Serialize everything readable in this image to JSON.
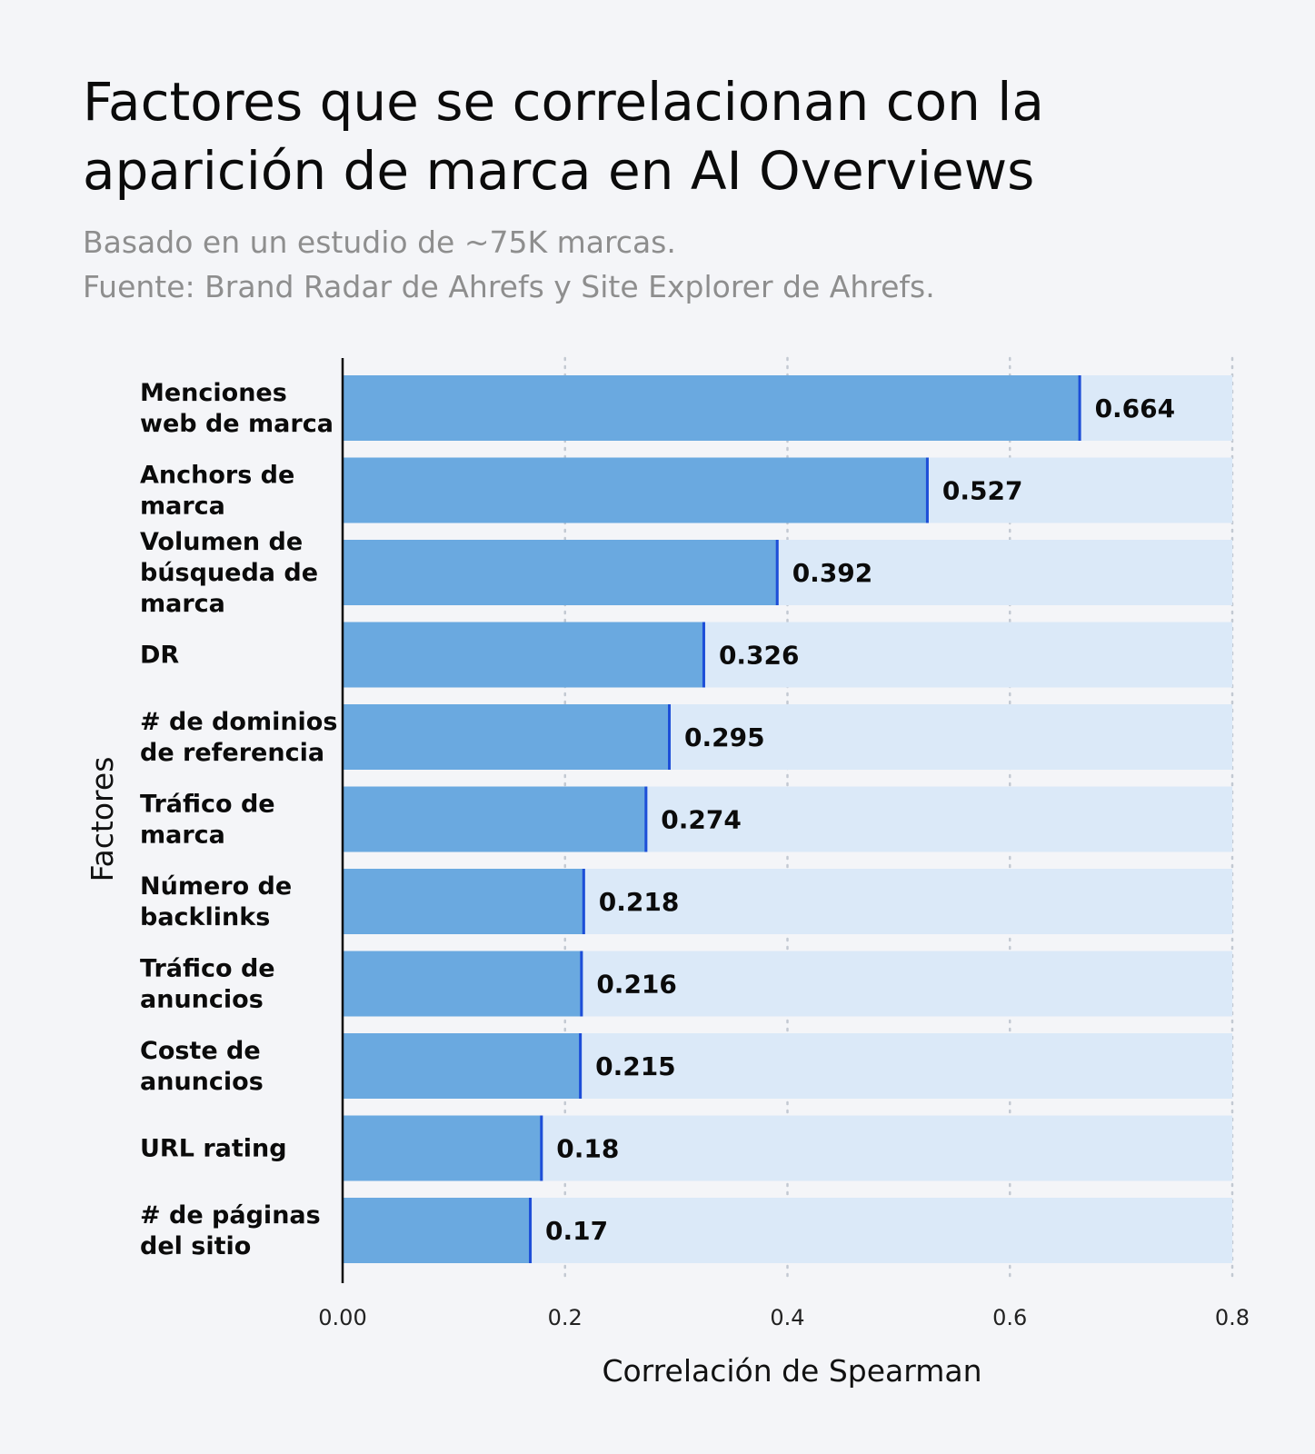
{
  "header": {
    "title_lines": [
      "Factores que se correlacionan con la",
      "aparición de marca en AI Overviews"
    ],
    "subtitle_lines": [
      "Basado en un estudio de ~75K marcas.",
      "Fuente: Brand Radar de Ahrefs y Site Explorer de Ahrefs."
    ]
  },
  "chart_data": {
    "type": "bar",
    "orientation": "horizontal",
    "xlabel": "Correlación de Spearman",
    "ylabel": "Factores",
    "xlim": [
      0,
      0.8
    ],
    "xticks": [
      0,
      0.2,
      0.4,
      0.6,
      0.8
    ],
    "xtick_labels": [
      "0.00",
      "0.2",
      "0.4",
      "0.6",
      "0.8"
    ],
    "grid": "vertical-dotted",
    "colors": {
      "bar": "#6aa9e0",
      "track": "#dbe9f8",
      "bar_end": "#1d4ed8",
      "grid": "#c3c9d2"
    },
    "categories": [
      [
        "Menciones",
        "web de marca"
      ],
      [
        "Anchors de",
        "marca"
      ],
      [
        "Volumen de",
        "búsqueda de",
        "marca"
      ],
      [
        "DR"
      ],
      [
        "# de dominios",
        "de referencia"
      ],
      [
        "Tráfico de",
        "marca"
      ],
      [
        "Número de",
        "backlinks"
      ],
      [
        "Tráfico de",
        "anuncios"
      ],
      [
        "Coste de",
        "anuncios"
      ],
      [
        "URL rating"
      ],
      [
        "# de páginas",
        "del sitio"
      ]
    ],
    "values": [
      0.664,
      0.527,
      0.392,
      0.326,
      0.295,
      0.274,
      0.218,
      0.216,
      0.215,
      0.18,
      0.17
    ],
    "value_labels": [
      "0.664",
      "0.527",
      "0.392",
      "0.326",
      "0.295",
      "0.274",
      "0.218",
      "0.216",
      "0.215",
      "0.18",
      "0.17"
    ]
  }
}
